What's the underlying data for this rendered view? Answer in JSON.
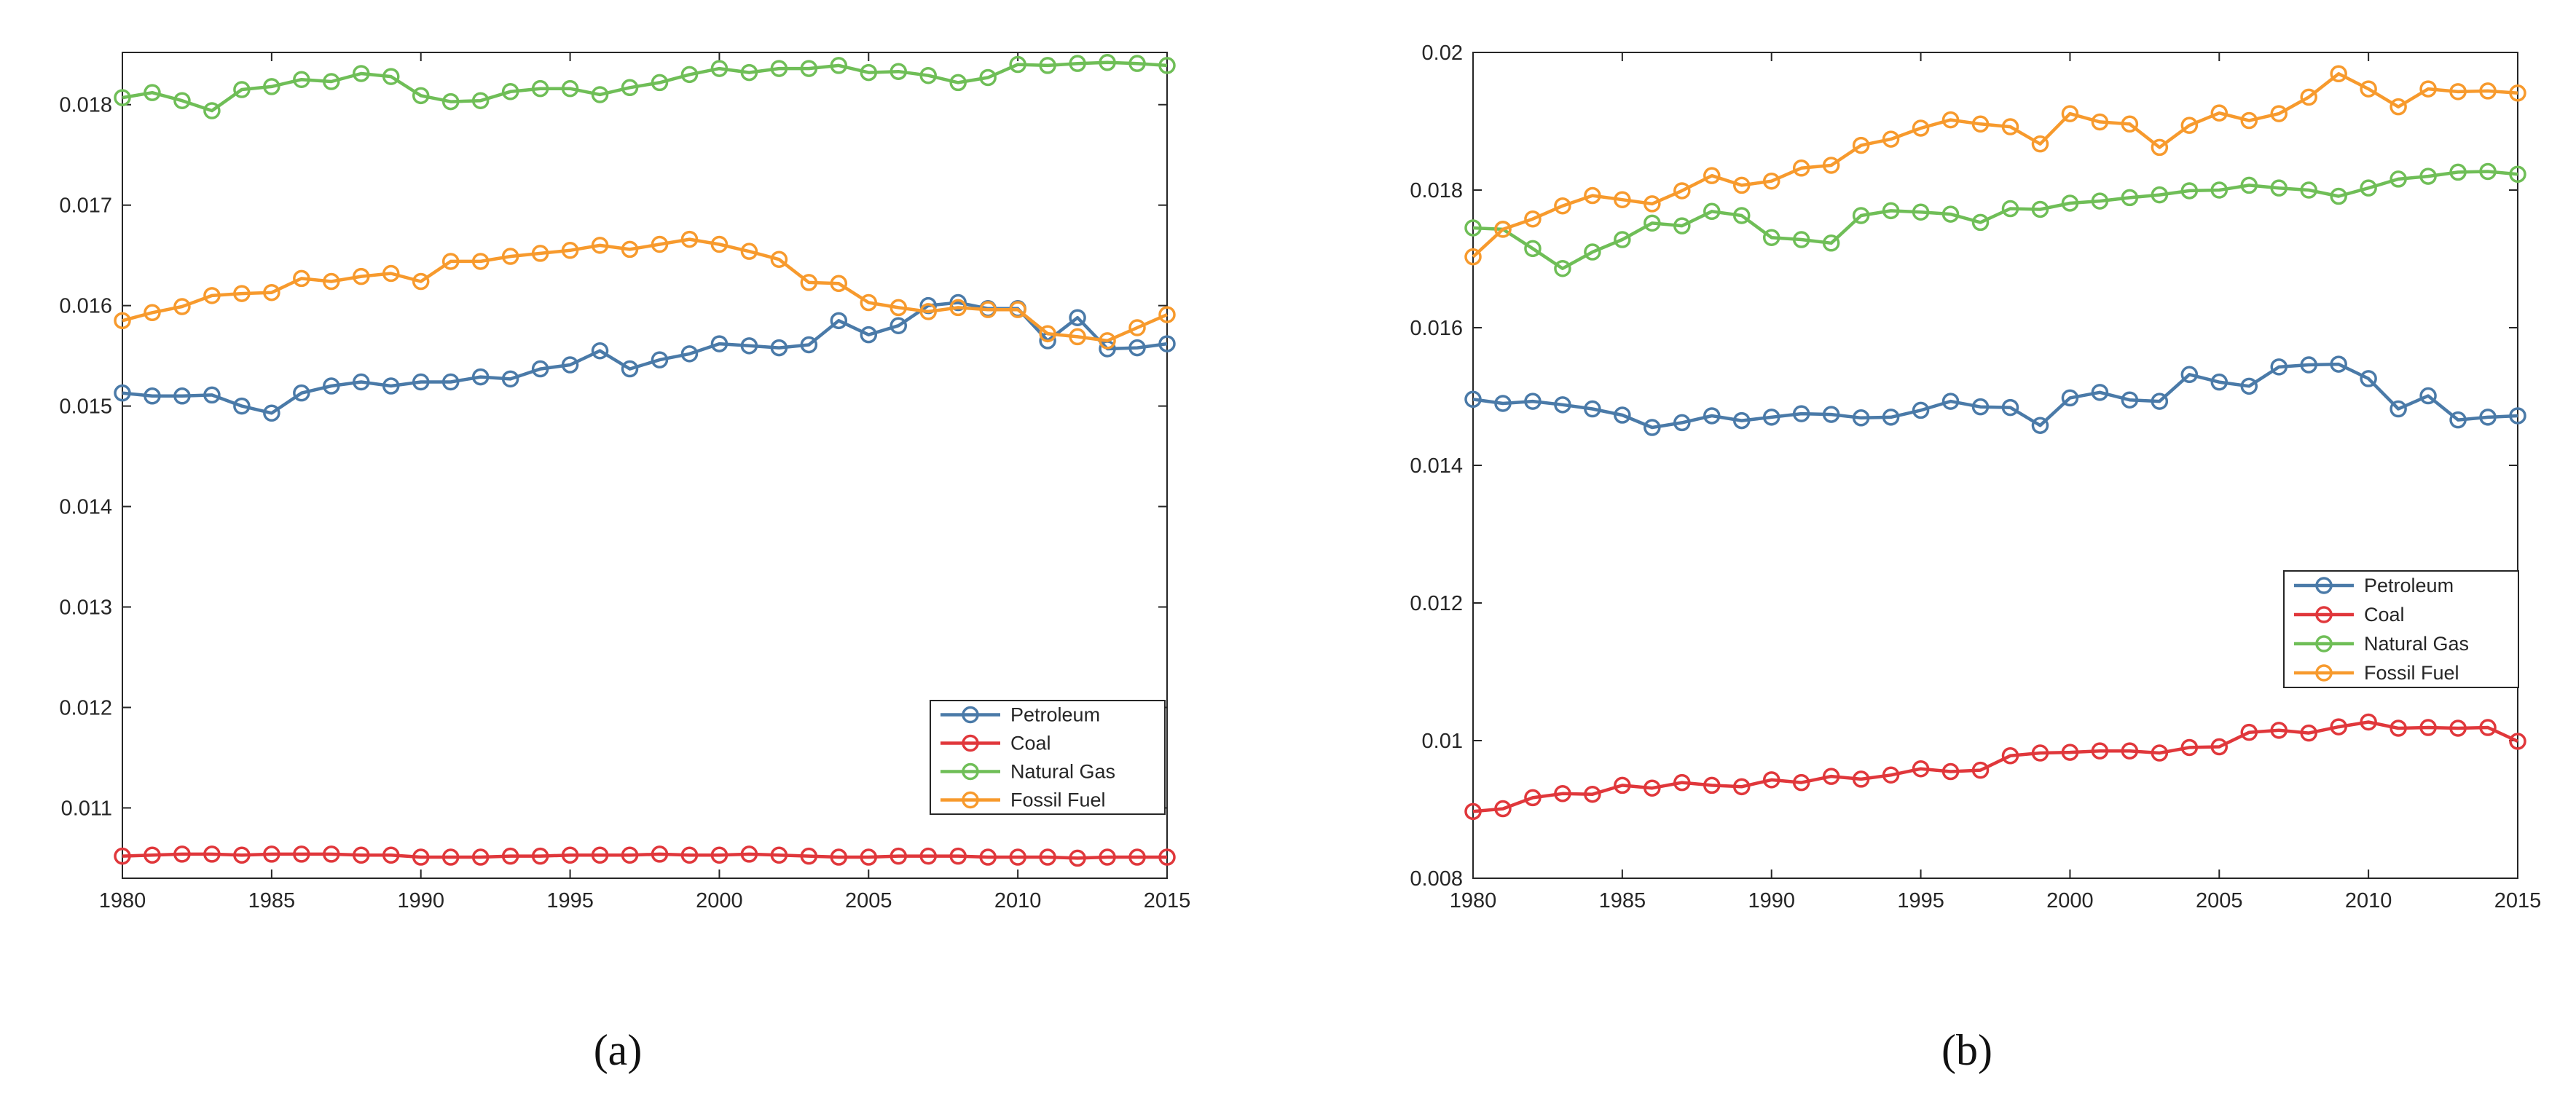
{
  "chart_data": [
    {
      "panel_label": "(a)",
      "type": "line",
      "x": [
        1980,
        1981,
        1982,
        1983,
        1984,
        1985,
        1986,
        1987,
        1988,
        1989,
        1990,
        1991,
        1992,
        1993,
        1994,
        1995,
        1996,
        1997,
        1998,
        1999,
        2000,
        2001,
        2002,
        2003,
        2004,
        2005,
        2006,
        2007,
        2008,
        2009,
        2010,
        2011,
        2012,
        2013,
        2014,
        2015
      ],
      "xlim": [
        1980,
        2015
      ],
      "ylim": [
        0.0103,
        0.01852
      ],
      "xticks": [
        "1980",
        "1985",
        "1990",
        "1995",
        "2000",
        "2005",
        "2010",
        "2015"
      ],
      "yticks": [
        "0.011",
        "0.012",
        "0.013",
        "0.014",
        "0.015",
        "0.016",
        "0.017",
        "0.018"
      ],
      "legend": {
        "position": "bottom-right"
      },
      "series": [
        {
          "name": "Petroleum",
          "color": "#4a7aa8",
          "values": [
            0.01513,
            0.0151,
            0.0151,
            0.01511,
            0.015,
            0.01493,
            0.01513,
            0.0152,
            0.01524,
            0.0152,
            0.01524,
            0.01524,
            0.01529,
            0.01527,
            0.01537,
            0.01541,
            0.01555,
            0.01537,
            0.01546,
            0.01552,
            0.01562,
            0.0156,
            0.01558,
            0.01561,
            0.01585,
            0.01571,
            0.0158,
            0.016,
            0.01603,
            0.01597,
            0.01597,
            0.01565,
            0.01588,
            0.01557,
            0.01558,
            0.01562
          ]
        },
        {
          "name": "Coal",
          "color": "#e0373b",
          "values": [
            0.01052,
            0.01053,
            0.01054,
            0.01054,
            0.01053,
            0.01054,
            0.01054,
            0.01054,
            0.01053,
            0.01053,
            0.01051,
            0.01051,
            0.01051,
            0.01052,
            0.01052,
            0.01053,
            0.01053,
            0.01053,
            0.01054,
            0.01053,
            0.01053,
            0.01054,
            0.01053,
            0.01052,
            0.01051,
            0.01051,
            0.01052,
            0.01052,
            0.01052,
            0.01051,
            0.01051,
            0.01051,
            0.0105,
            0.01051,
            0.01051,
            0.01051
          ]
        },
        {
          "name": "Natural Gas",
          "color": "#6fbe57",
          "values": [
            0.01807,
            0.01812,
            0.01804,
            0.01794,
            0.01815,
            0.01818,
            0.01825,
            0.01823,
            0.01831,
            0.01828,
            0.01809,
            0.01803,
            0.01804,
            0.01813,
            0.01816,
            0.01816,
            0.0181,
            0.01817,
            0.01822,
            0.0183,
            0.01836,
            0.01832,
            0.01836,
            0.01836,
            0.01839,
            0.01832,
            0.01833,
            0.01829,
            0.01822,
            0.01827,
            0.0184,
            0.01839,
            0.01841,
            0.01842,
            0.01841,
            0.01839
          ]
        },
        {
          "name": "Fossil Fuel",
          "color": "#f79a2d",
          "values": [
            0.01585,
            0.01593,
            0.01599,
            0.0161,
            0.01612,
            0.01613,
            0.01627,
            0.01624,
            0.01629,
            0.01632,
            0.01624,
            0.01644,
            0.01644,
            0.01649,
            0.01652,
            0.01655,
            0.0166,
            0.01656,
            0.01661,
            0.01666,
            0.01661,
            0.01654,
            0.01646,
            0.01623,
            0.01622,
            0.01603,
            0.01598,
            0.01594,
            0.01598,
            0.01596,
            0.01596,
            0.01572,
            0.01569,
            0.01565,
            0.01578,
            0.01591
          ]
        }
      ]
    },
    {
      "panel_label": "(b)",
      "type": "line",
      "x": [
        1980,
        1981,
        1982,
        1983,
        1984,
        1985,
        1986,
        1987,
        1988,
        1989,
        1990,
        1991,
        1992,
        1993,
        1994,
        1995,
        1996,
        1997,
        1998,
        1999,
        2000,
        2001,
        2002,
        2003,
        2004,
        2005,
        2006,
        2007,
        2008,
        2009,
        2010,
        2011,
        2012,
        2013,
        2014,
        2015
      ],
      "xlim": [
        1980,
        2015
      ],
      "ylim": [
        0.008,
        0.02
      ],
      "xticks": [
        "1980",
        "1985",
        "1990",
        "1995",
        "2000",
        "2005",
        "2010",
        "2015"
      ],
      "yticks": [
        "0.008",
        "0.01",
        "0.012",
        "0.014",
        "0.016",
        "0.018",
        "0.02"
      ],
      "legend": {
        "position": "right"
      },
      "series": [
        {
          "name": "Petroleum",
          "color": "#4a7aa8",
          "values": [
            0.01496,
            0.0149,
            0.01493,
            0.01488,
            0.01482,
            0.01473,
            0.01455,
            0.01462,
            0.01472,
            0.01465,
            0.0147,
            0.01475,
            0.01474,
            0.01469,
            0.0147,
            0.0148,
            0.01493,
            0.01485,
            0.01484,
            0.01458,
            0.01498,
            0.01506,
            0.01495,
            0.01493,
            0.01532,
            0.01521,
            0.01515,
            0.01543,
            0.01546,
            0.01547,
            0.01526,
            0.01482,
            0.01501,
            0.01466,
            0.0147,
            0.01472
          ]
        },
        {
          "name": "Coal",
          "color": "#e0373b",
          "values": [
            0.00897,
            0.00901,
            0.00917,
            0.00923,
            0.00922,
            0.00935,
            0.00931,
            0.00939,
            0.00935,
            0.00933,
            0.00943,
            0.00939,
            0.00948,
            0.00944,
            0.0095,
            0.00959,
            0.00955,
            0.00957,
            0.00978,
            0.00982,
            0.00983,
            0.00985,
            0.00985,
            0.00982,
            0.0099,
            0.00991,
            0.01012,
            0.01015,
            0.01011,
            0.0102,
            0.01027,
            0.01018,
            0.01019,
            0.01018,
            0.01019,
            0.00999
          ]
        },
        {
          "name": "Natural Gas",
          "color": "#6fbe57",
          "values": [
            0.01745,
            0.01743,
            0.01715,
            0.01686,
            0.0171,
            0.01728,
            0.01752,
            0.01748,
            0.01769,
            0.01763,
            0.01731,
            0.01728,
            0.01723,
            0.01763,
            0.0177,
            0.01768,
            0.01765,
            0.01753,
            0.01773,
            0.01772,
            0.01781,
            0.01784,
            0.01789,
            0.01793,
            0.01799,
            0.018,
            0.01807,
            0.01803,
            0.018,
            0.01791,
            0.01803,
            0.01816,
            0.0182,
            0.01826,
            0.01827,
            0.01823
          ]
        },
        {
          "name": "Fossil Fuel",
          "color": "#f79a2d",
          "values": [
            0.01703,
            0.01743,
            0.01758,
            0.01777,
            0.01792,
            0.01786,
            0.0178,
            0.01799,
            0.01821,
            0.01807,
            0.01813,
            0.01832,
            0.01836,
            0.01865,
            0.01874,
            0.0189,
            0.01902,
            0.01896,
            0.01892,
            0.01867,
            0.01911,
            0.01899,
            0.01896,
            0.01862,
            0.01894,
            0.01912,
            0.01901,
            0.01911,
            0.01935,
            0.01969,
            0.01947,
            0.01921,
            0.01947,
            0.01943,
            0.01944,
            0.01941
          ]
        }
      ]
    }
  ]
}
